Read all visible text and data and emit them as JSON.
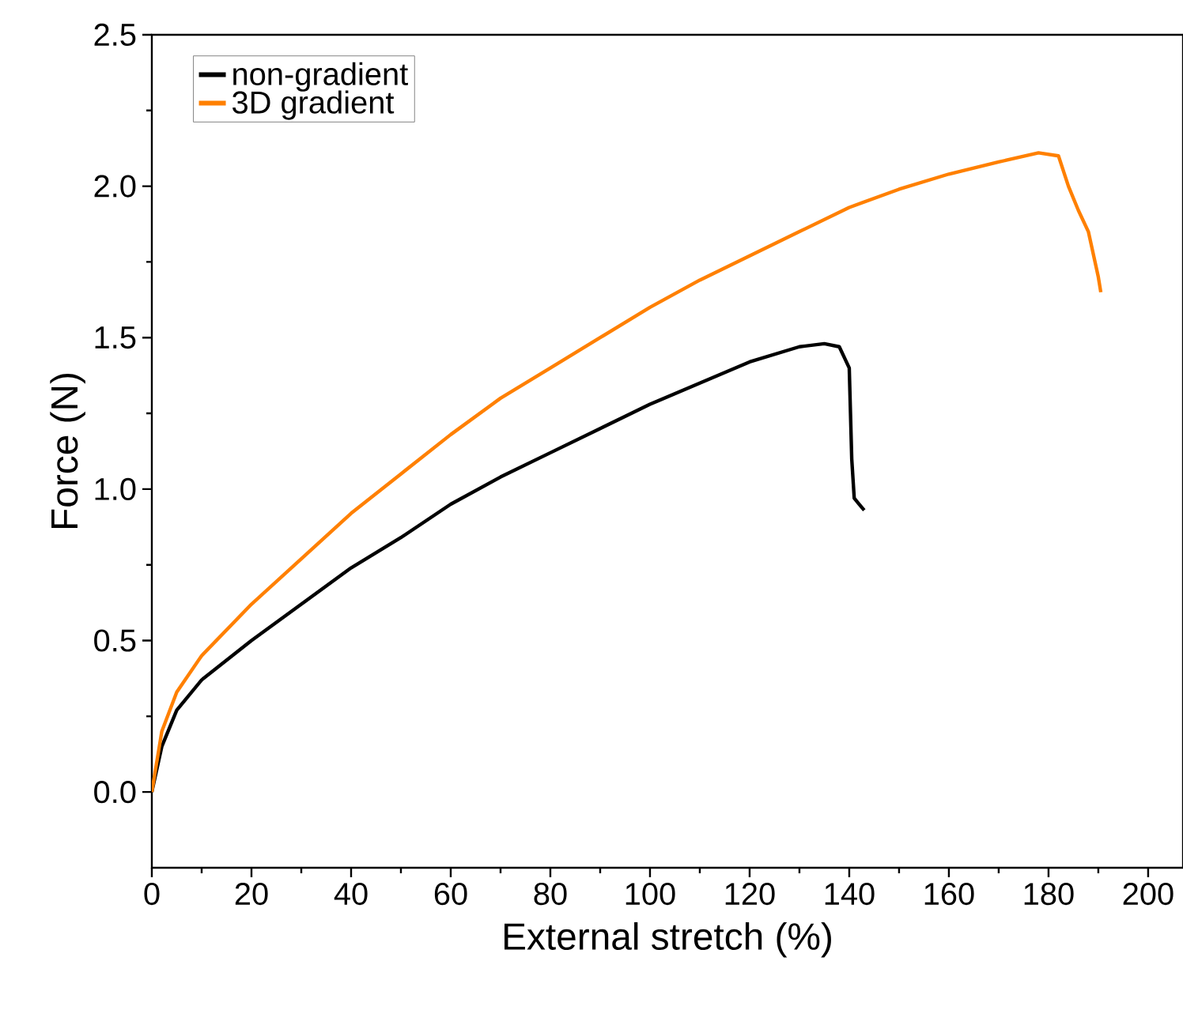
{
  "chart_data": {
    "type": "line",
    "xlabel": "External stretch (%)",
    "ylabel": "Force (N)",
    "xlim": [
      0,
      207
    ],
    "ylim": [
      -0.25,
      2.5
    ],
    "xticks": [
      0,
      20,
      40,
      60,
      80,
      100,
      120,
      140,
      160,
      180,
      200
    ],
    "yticks": [
      {
        "value": 0,
        "label": "0.0"
      },
      {
        "value": 0.5,
        "label": "0.5"
      },
      {
        "value": 1,
        "label": "1.0"
      },
      {
        "value": 1.5,
        "label": "1.5"
      },
      {
        "value": 2,
        "label": "2.0"
      },
      {
        "value": 2.5,
        "label": "2.5"
      }
    ],
    "legend": "top left",
    "grid": false,
    "marker": "none",
    "line_style": "solid",
    "series": [
      {
        "name": "non-gradient",
        "color": "#000000",
        "x": [
          0,
          2,
          5,
          10,
          20,
          30,
          40,
          50,
          60,
          70,
          80,
          90,
          100,
          110,
          120,
          130,
          135,
          138,
          140,
          140.5,
          141,
          142,
          143
        ],
        "values": [
          0,
          0.15,
          0.27,
          0.37,
          0.5,
          0.62,
          0.74,
          0.84,
          0.95,
          1.04,
          1.12,
          1.2,
          1.28,
          1.35,
          1.42,
          1.47,
          1.48,
          1.47,
          1.4,
          1.1,
          0.97,
          0.95,
          0.93
        ]
      },
      {
        "name": "3D gradient",
        "color": "#ff8000",
        "x": [
          0,
          2,
          5,
          10,
          20,
          30,
          40,
          50,
          60,
          70,
          80,
          90,
          100,
          110,
          120,
          130,
          140,
          150,
          160,
          170,
          178,
          182,
          184,
          186,
          188,
          190,
          190.5
        ],
        "values": [
          0,
          0.2,
          0.33,
          0.45,
          0.62,
          0.77,
          0.92,
          1.05,
          1.18,
          1.3,
          1.4,
          1.5,
          1.6,
          1.69,
          1.77,
          1.85,
          1.93,
          1.99,
          2.04,
          2.08,
          2.11,
          2.1,
          2.0,
          1.92,
          1.85,
          1.7,
          1.65
        ]
      }
    ]
  }
}
